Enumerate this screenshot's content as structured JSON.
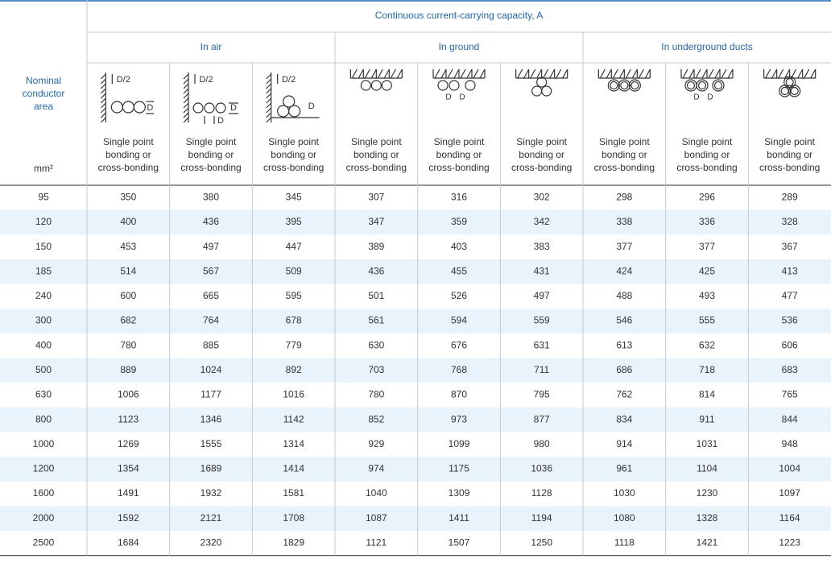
{
  "header": {
    "title": "Continuous current-carrying capacity, A",
    "groups": [
      "In air",
      "In ground",
      "In underground ducts"
    ],
    "row_label": [
      "Nominal",
      "conductor",
      "area"
    ],
    "unit": "mm²"
  },
  "columns": [
    {
      "icon_labels": [
        "D/2",
        "D"
      ],
      "label": [
        "Single point",
        "bonding or",
        "cross-bonding"
      ]
    },
    {
      "icon_labels": [
        "D/2",
        "D",
        "D"
      ],
      "label": [
        "Single point",
        "bonding or",
        "cross-bonding"
      ]
    },
    {
      "icon_labels": [
        "D/2",
        "D"
      ],
      "label": [
        "Single point",
        "bonding or",
        "cross-bonding"
      ]
    },
    {
      "icon_labels": [],
      "label": [
        "Single point",
        "bonding or",
        "cross-bonding"
      ]
    },
    {
      "icon_labels": [
        "D",
        "D"
      ],
      "label": [
        "Single point",
        "bonding or",
        "cross-bonding"
      ]
    },
    {
      "icon_labels": [],
      "label": [
        "Single point",
        "bonding or",
        "cross-bonding"
      ]
    },
    {
      "icon_labels": [],
      "label": [
        "Single point",
        "bonding or",
        "cross-bonding"
      ]
    },
    {
      "icon_labels": [
        "D",
        "D"
      ],
      "label": [
        "Single point",
        "bonding or",
        "cross-bonding"
      ]
    },
    {
      "icon_labels": [],
      "label": [
        "Single point",
        "bonding or",
        "cross-bonding"
      ]
    }
  ],
  "table": {
    "rows": [
      [
        95,
        350,
        380,
        345,
        307,
        316,
        302,
        298,
        296,
        289
      ],
      [
        120,
        400,
        436,
        395,
        347,
        359,
        342,
        338,
        336,
        328
      ],
      [
        150,
        453,
        497,
        447,
        389,
        403,
        383,
        377,
        377,
        367
      ],
      [
        185,
        514,
        567,
        509,
        436,
        455,
        431,
        424,
        425,
        413
      ],
      [
        240,
        600,
        665,
        595,
        501,
        526,
        497,
        488,
        493,
        477
      ],
      [
        300,
        682,
        764,
        678,
        561,
        594,
        559,
        546,
        555,
        536
      ],
      [
        400,
        780,
        885,
        779,
        630,
        676,
        631,
        613,
        632,
        606
      ],
      [
        500,
        889,
        1024,
        892,
        703,
        768,
        711,
        686,
        718,
        683
      ],
      [
        630,
        1006,
        1177,
        1016,
        780,
        870,
        795,
        762,
        814,
        765
      ],
      [
        800,
        1123,
        1346,
        1142,
        852,
        973,
        877,
        834,
        911,
        844
      ],
      [
        1000,
        1269,
        1555,
        1314,
        929,
        1099,
        980,
        914,
        1031,
        948
      ],
      [
        1200,
        1354,
        1689,
        1414,
        974,
        1175,
        1036,
        961,
        1104,
        1004
      ],
      [
        1600,
        1491,
        1932,
        1581,
        1040,
        1309,
        1128,
        1030,
        1230,
        1097
      ],
      [
        2000,
        1592,
        2121,
        1708,
        1087,
        1411,
        1194,
        1080,
        1328,
        1164
      ],
      [
        2500,
        1684,
        2320,
        1829,
        1121,
        1507,
        1250,
        1118,
        1421,
        1223
      ]
    ]
  }
}
